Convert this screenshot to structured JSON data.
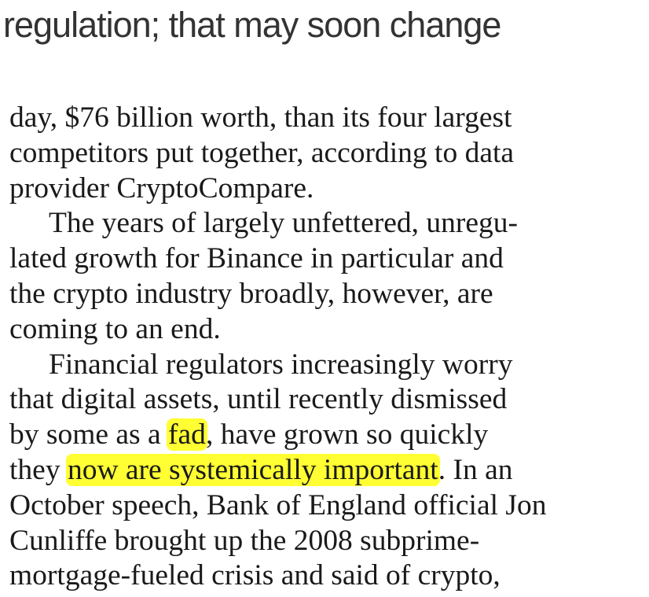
{
  "headline": "regulation; that may soon change",
  "lines": [
    {
      "indent": false,
      "segments": [
        {
          "text": "day, $76 billion worth, than its four largest",
          "highlight": false
        }
      ]
    },
    {
      "indent": false,
      "segments": [
        {
          "text": "competitors put together, according to data",
          "highlight": false
        }
      ]
    },
    {
      "indent": false,
      "segments": [
        {
          "text": "provider CryptoCompare.",
          "highlight": false
        }
      ]
    },
    {
      "indent": true,
      "segments": [
        {
          "text": "The years of largely unfettered, unregu-",
          "highlight": false
        }
      ]
    },
    {
      "indent": false,
      "segments": [
        {
          "text": "lated growth for Binance in particular and",
          "highlight": false
        }
      ]
    },
    {
      "indent": false,
      "segments": [
        {
          "text": "the crypto industry broadly, however, are",
          "highlight": false
        }
      ]
    },
    {
      "indent": false,
      "segments": [
        {
          "text": "coming to an end.",
          "highlight": false
        }
      ]
    },
    {
      "indent": true,
      "segments": [
        {
          "text": "Financial regulators increasingly worry",
          "highlight": false
        }
      ]
    },
    {
      "indent": false,
      "segments": [
        {
          "text": "that digital assets, until recently dismissed",
          "highlight": false
        }
      ]
    },
    {
      "indent": false,
      "segments": [
        {
          "text": "by some as a ",
          "highlight": false
        },
        {
          "text": "fad",
          "highlight": true
        },
        {
          "text": ", have grown so quickly",
          "highlight": false
        }
      ]
    },
    {
      "indent": false,
      "segments": [
        {
          "text": "they ",
          "highlight": false
        },
        {
          "text": "now are systemically important",
          "highlight": true
        },
        {
          "text": ". In an",
          "highlight": false
        }
      ]
    },
    {
      "indent": false,
      "segments": [
        {
          "text": "October speech, Bank of England official Jon",
          "highlight": false
        }
      ]
    },
    {
      "indent": false,
      "segments": [
        {
          "text": "Cunliffe brought up the 2008 subprime-",
          "highlight": false
        }
      ]
    },
    {
      "indent": false,
      "segments": [
        {
          "text": "mortgage-fueled crisis and said of crypto,",
          "highlight": false
        }
      ]
    }
  ]
}
